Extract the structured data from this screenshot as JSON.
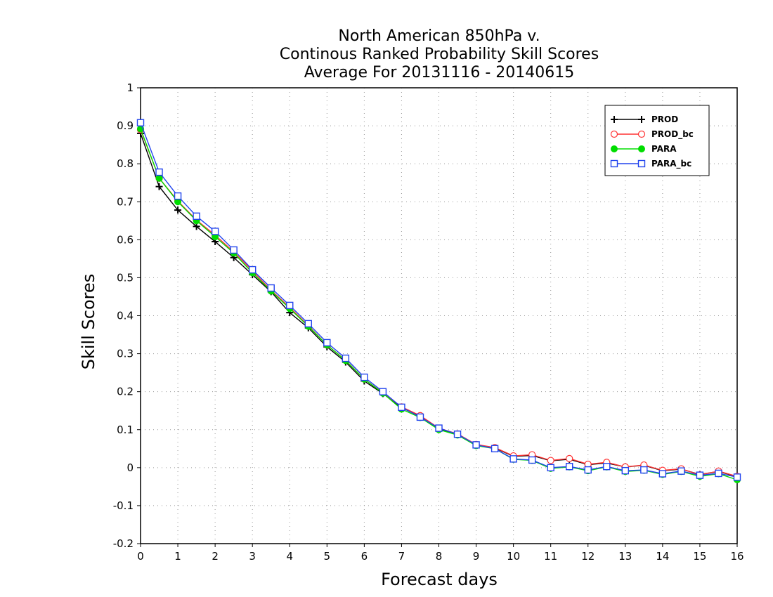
{
  "chart_data": {
    "type": "line",
    "title_lines": [
      "North American 850hPa v.",
      "Continous Ranked Probability Skill Scores",
      "Average For 20131116 - 20140615"
    ],
    "xlabel": "Forecast days",
    "ylabel": "Skill Scores",
    "xlim": [
      0,
      16
    ],
    "ylim": [
      -0.2,
      1
    ],
    "xticks": [
      "0",
      "1",
      "2",
      "3",
      "4",
      "5",
      "6",
      "7",
      "8",
      "9",
      "10",
      "11",
      "12",
      "13",
      "14",
      "15",
      "16"
    ],
    "yticks": [
      "-0.2",
      "-0.1",
      "0",
      "0.1",
      "0.2",
      "0.3",
      "0.4",
      "0.5",
      "0.6",
      "0.7",
      "0.8",
      "0.9",
      "1"
    ],
    "grid": true,
    "legend_position": "top-right",
    "x": [
      0,
      0.5,
      1,
      1.5,
      2,
      2.5,
      3,
      3.5,
      4,
      4.5,
      5,
      5.5,
      6,
      6.5,
      7,
      7.5,
      8,
      8.5,
      9,
      9.5,
      10,
      10.5,
      11,
      11.5,
      12,
      12.5,
      13,
      13.5,
      14,
      14.5,
      15,
      15.5,
      16
    ],
    "series": [
      {
        "name": "PROD",
        "color": "#000000",
        "marker": "plus",
        "values": [
          0.88,
          0.74,
          0.678,
          0.635,
          0.595,
          0.553,
          0.508,
          0.463,
          0.408,
          0.368,
          0.318,
          0.278,
          0.228,
          0.195,
          0.158,
          0.135,
          0.102,
          0.088,
          0.06,
          0.052,
          0.03,
          0.032,
          0.018,
          0.022,
          0.008,
          0.012,
          0.002,
          0.006,
          -0.008,
          -0.004,
          -0.018,
          -0.01,
          -0.024
        ]
      },
      {
        "name": "PROD_bc",
        "color": "#ff3333",
        "marker": "circle-open",
        "values": [
          0.89,
          0.762,
          0.702,
          0.652,
          0.612,
          0.568,
          0.518,
          0.467,
          0.422,
          0.374,
          0.323,
          0.283,
          0.233,
          0.197,
          0.16,
          0.137,
          0.104,
          0.089,
          0.061,
          0.053,
          0.031,
          0.034,
          0.019,
          0.024,
          0.009,
          0.014,
          0.002,
          0.007,
          -0.007,
          -0.003,
          -0.019,
          -0.009,
          -0.023
        ]
      },
      {
        "name": "PARA",
        "color": "#00dd00",
        "marker": "circle-filled",
        "values": [
          0.892,
          0.762,
          0.7,
          0.65,
          0.608,
          0.565,
          0.513,
          0.465,
          0.419,
          0.372,
          0.323,
          0.282,
          0.233,
          0.196,
          0.154,
          0.132,
          0.1,
          0.086,
          0.058,
          0.05,
          0.022,
          0.019,
          -0.002,
          0.002,
          -0.008,
          0.002,
          -0.01,
          -0.007,
          -0.018,
          -0.01,
          -0.023,
          -0.016,
          -0.032
        ]
      },
      {
        "name": "PARA_bc",
        "color": "#2244ee",
        "marker": "square-open",
        "values": [
          0.908,
          0.778,
          0.715,
          0.662,
          0.622,
          0.573,
          0.521,
          0.473,
          0.427,
          0.379,
          0.329,
          0.288,
          0.238,
          0.2,
          0.159,
          0.133,
          0.104,
          0.088,
          0.06,
          0.05,
          0.023,
          0.02,
          0.0,
          0.003,
          -0.006,
          0.003,
          -0.008,
          -0.006,
          -0.016,
          -0.009,
          -0.02,
          -0.015,
          -0.025
        ]
      }
    ]
  }
}
